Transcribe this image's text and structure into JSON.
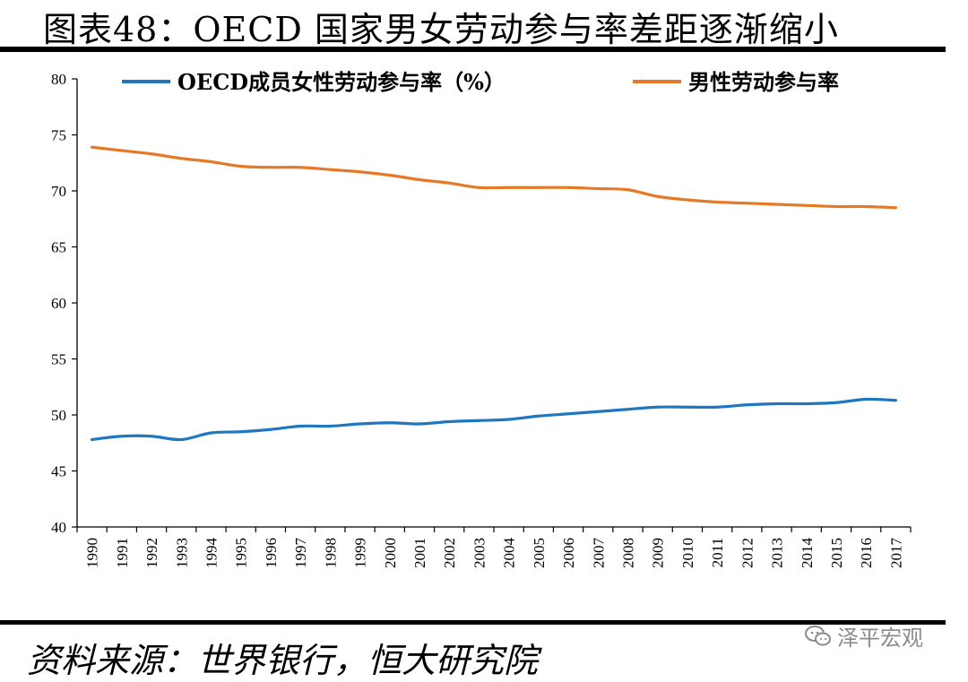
{
  "header": {
    "title": "图表48：OECD 国家男女劳动参与率差距逐渐缩小"
  },
  "footer": {
    "source": "资料来源：世界银行，恒大研究院",
    "watermark": "泽平宏观"
  },
  "colors": {
    "female": "#1F77BF",
    "male": "#E47A28",
    "axis": "#000000"
  },
  "chart_data": {
    "type": "line",
    "title": "",
    "xlabel": "",
    "ylabel": "",
    "ylim": [
      40,
      80
    ],
    "yticks": [
      40,
      45,
      50,
      55,
      60,
      65,
      70,
      75,
      80
    ],
    "ytick_labels": [
      "40",
      "45",
      "50",
      "55",
      "60",
      "65",
      "70",
      "75",
      "80"
    ],
    "grid": false,
    "legend_position": "top",
    "categories": [
      "1990",
      "1991",
      "1992",
      "1993",
      "1994",
      "1995",
      "1996",
      "1997",
      "1998",
      "1999",
      "2000",
      "2001",
      "2002",
      "2003",
      "2004",
      "2005",
      "2006",
      "2007",
      "2008",
      "2009",
      "2010",
      "2011",
      "2012",
      "2013",
      "2014",
      "2015",
      "2016",
      "2017"
    ],
    "series": [
      {
        "name": "OECD成员女性劳动参与率（%）",
        "values": [
          47.8,
          48.1,
          48.1,
          47.8,
          48.4,
          48.5,
          48.7,
          49.0,
          49.0,
          49.2,
          49.3,
          49.2,
          49.4,
          49.5,
          49.6,
          49.9,
          50.1,
          50.3,
          50.5,
          50.7,
          50.7,
          50.7,
          50.9,
          51.0,
          51.0,
          51.1,
          51.4,
          51.3
        ]
      },
      {
        "name": "男性劳动参与率",
        "values": [
          73.9,
          73.6,
          73.3,
          72.9,
          72.6,
          72.2,
          72.1,
          72.1,
          71.9,
          71.7,
          71.4,
          71.0,
          70.7,
          70.3,
          70.3,
          70.3,
          70.3,
          70.2,
          70.1,
          69.5,
          69.2,
          69.0,
          68.9,
          68.8,
          68.7,
          68.6,
          68.6,
          68.5
        ]
      }
    ]
  }
}
